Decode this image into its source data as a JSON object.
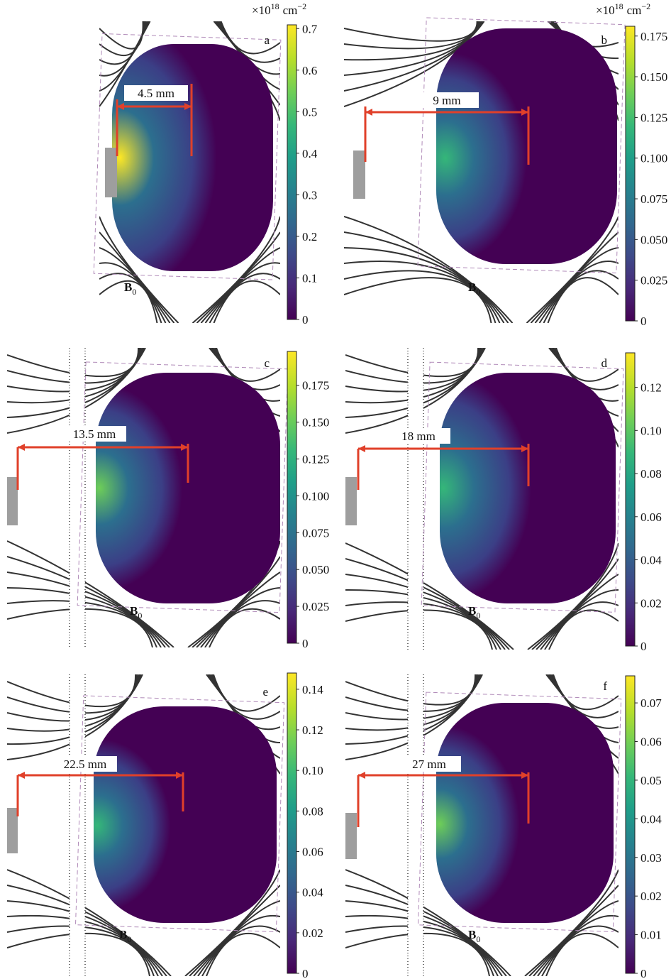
{
  "panels": [
    {
      "label": "a",
      "distance": "4.5 mm",
      "field_label": {
        "main": "B",
        "sub": "0"
      },
      "unit": {
        "base": "×10",
        "exp": "18",
        "unit": "cm",
        "unit_exp": "−2"
      },
      "colorbar": {
        "ylim": [
          0,
          0.709
        ],
        "yticks": [
          0,
          {
            "value": 0.1,
            "label": "0.1"
          },
          {
            "value": 0.2,
            "label": "0.2"
          },
          {
            "value": 0.3,
            "label": "0.3"
          },
          {
            "value": 0.4,
            "label": "0.4"
          },
          {
            "value": 0.5,
            "label": "0.5"
          },
          {
            "value": 0.6,
            "label": "0.6"
          },
          {
            "value": 0.7,
            "label": "0.7"
          }
        ]
      }
    },
    {
      "label": "b",
      "distance": "9 mm",
      "field_label": {
        "main": "B",
        "sub": "0"
      },
      "unit": {
        "base": "×10",
        "exp": "18",
        "unit": "cm",
        "unit_exp": "−2"
      },
      "colorbar": {
        "ylim": [
          0,
          0.181
        ],
        "yticks": [
          0,
          {
            "value": 0.025,
            "label": "0.025"
          },
          {
            "value": 0.05,
            "label": "0.050"
          },
          {
            "value": 0.075,
            "label": "0.075"
          },
          {
            "value": 0.1,
            "label": "0.100"
          },
          {
            "value": 0.125,
            "label": "0.125"
          },
          {
            "value": 0.15,
            "label": "0.150"
          },
          {
            "value": 0.175,
            "label": "0.175"
          }
        ]
      }
    },
    {
      "label": "c",
      "distance": "13.5 mm",
      "field_label": {
        "main": "B",
        "sub": "0"
      },
      "colorbar": {
        "ylim": [
          0,
          0.198
        ],
        "yticks": [
          0,
          {
            "value": 0.025,
            "label": "0.025"
          },
          {
            "value": 0.05,
            "label": "0.050"
          },
          {
            "value": 0.075,
            "label": "0.075"
          },
          {
            "value": 0.1,
            "label": "0.100"
          },
          {
            "value": 0.125,
            "label": "0.125"
          },
          {
            "value": 0.15,
            "label": "0.150"
          },
          {
            "value": 0.175,
            "label": "0.175"
          }
        ]
      }
    },
    {
      "label": "d",
      "distance": "18 mm",
      "field_label": {
        "main": "B",
        "sub": "0"
      },
      "colorbar": {
        "ylim": [
          0,
          0.136
        ],
        "yticks": [
          0,
          {
            "value": 0.02,
            "label": "0.02"
          },
          {
            "value": 0.04,
            "label": "0.04"
          },
          {
            "value": 0.06,
            "label": "0.06"
          },
          {
            "value": 0.08,
            "label": "0.08"
          },
          {
            "value": 0.1,
            "label": "0.10"
          },
          {
            "value": 0.12,
            "label": "0.12"
          }
        ]
      }
    },
    {
      "label": "e",
      "distance": "22.5 mm",
      "field_label": {
        "main": "B",
        "sub": "0"
      },
      "colorbar": {
        "ylim": [
          0,
          0.148
        ],
        "yticks": [
          0,
          {
            "value": 0.02,
            "label": "0.02"
          },
          {
            "value": 0.04,
            "label": "0.04"
          },
          {
            "value": 0.06,
            "label": "0.06"
          },
          {
            "value": 0.08,
            "label": "0.08"
          },
          {
            "value": 0.1,
            "label": "0.10"
          },
          {
            "value": 0.12,
            "label": "0.12"
          },
          {
            "value": 0.14,
            "label": "0.14"
          }
        ]
      }
    },
    {
      "label": "f",
      "distance": "27 mm",
      "field_label": {
        "main": "B",
        "sub": "0"
      },
      "colorbar": {
        "ylim": [
          0,
          0.077
        ],
        "yticks": [
          0,
          {
            "value": 0.01,
            "label": "0.01"
          },
          {
            "value": 0.02,
            "label": "0.02"
          },
          {
            "value": 0.03,
            "label": "0.03"
          },
          {
            "value": 0.04,
            "label": "0.04"
          },
          {
            "value": 0.05,
            "label": "0.05"
          },
          {
            "value": 0.06,
            "label": "0.06"
          },
          {
            "value": 0.07,
            "label": "0.07"
          }
        ]
      }
    }
  ]
}
